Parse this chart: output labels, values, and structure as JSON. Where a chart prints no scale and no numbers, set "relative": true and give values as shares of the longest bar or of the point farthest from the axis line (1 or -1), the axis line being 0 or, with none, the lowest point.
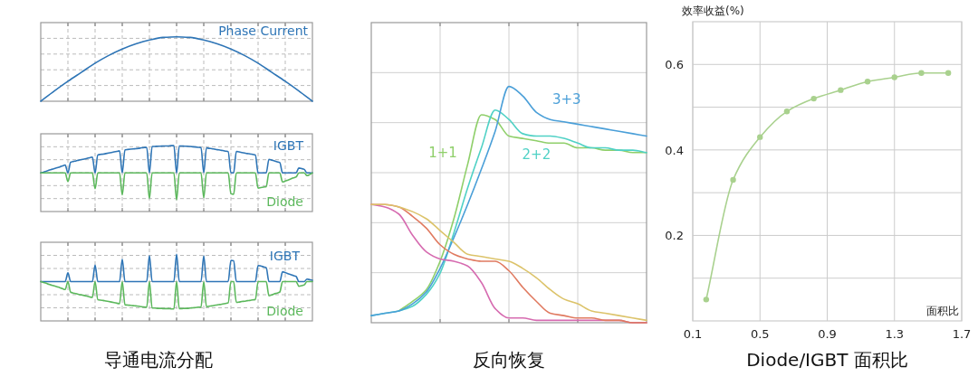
{
  "chart_data": [
    {
      "type": "line",
      "relative": true,
      "grid": true,
      "categories": [
        null,
        null,
        null,
        null,
        null,
        null,
        null,
        null,
        null,
        null,
        null,
        null,
        null,
        null,
        null,
        null,
        null,
        null,
        null,
        null,
        null
      ],
      "series": [
        {
          "name": "Phase Current",
          "color": "#2e75b6",
          "values": [
            0,
            0.16,
            0.31,
            0.45,
            0.59,
            0.71,
            0.81,
            0.89,
            0.95,
            0.99,
            1,
            0.99,
            0.95,
            0.89,
            0.81,
            0.71,
            0.59,
            0.45,
            0.31,
            0.16,
            0
          ]
        }
      ]
    },
    {
      "type": "line",
      "relative": true,
      "grid": true,
      "categories": [
        null,
        null,
        null,
        null,
        null,
        null,
        null,
        null,
        null,
        null,
        null,
        null,
        null,
        null,
        null,
        null,
        null,
        null,
        null,
        null,
        null,
        null,
        null,
        null,
        null,
        null,
        null,
        null,
        null,
        null,
        null,
        null,
        null,
        null,
        null,
        null,
        null,
        null,
        null,
        null,
        null,
        null,
        null,
        null,
        null,
        null,
        null,
        null,
        null,
        null,
        null,
        null,
        null,
        null,
        null,
        null,
        null,
        null,
        null,
        null,
        null,
        null,
        null,
        null,
        null,
        null,
        null,
        null,
        null,
        null,
        null,
        null,
        null,
        null,
        null,
        null,
        null,
        null,
        null,
        null,
        null,
        null,
        null,
        null,
        null,
        null,
        null,
        null,
        null,
        null,
        null,
        null,
        null,
        null,
        null,
        null,
        null,
        null,
        null,
        null,
        null
      ],
      "series": [
        {
          "name": "IGBT",
          "color": "#2e75b6",
          "values": [
            0,
            0.03,
            0.06,
            0.1,
            0.13,
            0.16,
            0.19,
            0.22,
            0.26,
            0.29,
            0,
            0.39,
            0.42,
            0.44,
            0.47,
            0.49,
            0.51,
            0.53,
            0.56,
            0.58,
            0,
            0.66,
            0.68,
            0.69,
            0.71,
            0.73,
            0.75,
            0.77,
            0.79,
            0.81,
            0,
            0.85,
            0.86,
            0.87,
            0.88,
            0.89,
            0.9,
            0.92,
            0.93,
            0.94,
            0,
            0.97,
            0.97,
            0.98,
            0.98,
            0.99,
            0.99,
            0.99,
            1,
            1,
            0,
            0.99,
            0.99,
            0.98,
            0.98,
            0.97,
            0.96,
            0.95,
            0.94,
            0.93,
            0,
            0.92,
            0.9,
            0.89,
            0.87,
            0.85,
            0.84,
            0.82,
            0.8,
            0.78,
            0,
            0,
            0.79,
            0.77,
            0.75,
            0.73,
            0.71,
            0.7,
            0.68,
            0.66,
            0,
            0,
            0,
            0,
            0.5,
            0.47,
            0.44,
            0.41,
            0.38,
            0,
            0,
            0,
            0,
            0,
            0,
            0.18,
            0.16,
            0.13,
            0,
            0,
            0
          ]
        },
        {
          "name": "Diode",
          "color": "#5cb85c",
          "values": [
            0,
            0,
            0,
            0,
            0,
            0,
            0,
            0,
            0,
            0,
            -0.32,
            0,
            0,
            0,
            0,
            0,
            0,
            0,
            0,
            0,
            -0.58,
            0,
            0,
            0,
            0,
            0,
            0,
            0,
            0,
            0,
            -0.8,
            0,
            0,
            0,
            0,
            0,
            0,
            0,
            0,
            0,
            -0.94,
            0,
            0,
            0,
            0,
            0,
            0,
            0,
            0,
            0,
            -0.98,
            0,
            0,
            0,
            0,
            0,
            0,
            0,
            0,
            0,
            -0.91,
            0,
            0,
            0,
            0,
            0,
            0,
            0,
            0,
            0,
            -0.76,
            -0.78,
            0,
            0,
            0,
            0,
            0,
            0,
            0,
            0,
            -0.56,
            -0.54,
            -0.52,
            -0.5,
            0,
            0,
            0,
            0,
            0,
            -0.33,
            -0.3,
            -0.26,
            -0.22,
            -0.18,
            -0.15,
            0,
            0,
            0,
            -0.1,
            -0.06,
            0
          ]
        }
      ]
    },
    {
      "type": "line",
      "relative": true,
      "grid": true,
      "annotations": [
        "导通电流分配"
      ],
      "categories": [
        null,
        null,
        null,
        null,
        null,
        null,
        null,
        null,
        null,
        null,
        null,
        null,
        null,
        null,
        null,
        null,
        null,
        null,
        null,
        null,
        null,
        null,
        null,
        null,
        null,
        null,
        null,
        null,
        null,
        null,
        null,
        null,
        null,
        null,
        null,
        null,
        null,
        null,
        null,
        null,
        null,
        null,
        null,
        null,
        null,
        null,
        null,
        null,
        null,
        null,
        null,
        null,
        null,
        null,
        null,
        null,
        null,
        null,
        null,
        null,
        null,
        null,
        null,
        null,
        null,
        null,
        null,
        null,
        null,
        null,
        null,
        null,
        null,
        null,
        null,
        null,
        null,
        null,
        null,
        null,
        null,
        null,
        null,
        null,
        null,
        null,
        null,
        null,
        null,
        null,
        null,
        null,
        null,
        null,
        null,
        null,
        null,
        null,
        null,
        null,
        null
      ],
      "series": [
        {
          "name": "IGBT",
          "color": "#2e75b6",
          "values": [
            0,
            0,
            0,
            0,
            0,
            0,
            0,
            0,
            0,
            0,
            0.32,
            0,
            0,
            0,
            0,
            0,
            0,
            0,
            0,
            0,
            0.6,
            0,
            0,
            0,
            0,
            0,
            0,
            0,
            0,
            0,
            0.82,
            0,
            0,
            0,
            0,
            0,
            0,
            0,
            0,
            0,
            0.95,
            0,
            0,
            0,
            0,
            0,
            0,
            0,
            0,
            0,
            1,
            0,
            0,
            0,
            0,
            0,
            0,
            0,
            0,
            0,
            0.94,
            0,
            0,
            0,
            0,
            0,
            0,
            0,
            0,
            0,
            0.78,
            0.76,
            0,
            0,
            0,
            0,
            0,
            0,
            0,
            0,
            0.59,
            0.57,
            0.54,
            0.51,
            0,
            0,
            0,
            0,
            0,
            0.36,
            0.33,
            0.29,
            0.26,
            0.22,
            0.19,
            0,
            0,
            0,
            0.09,
            0.07,
            0.05
          ]
        },
        {
          "name": "Diode",
          "color": "#5cb85c",
          "values": [
            0,
            -0.03,
            -0.06,
            -0.1,
            -0.13,
            -0.16,
            -0.19,
            -0.22,
            -0.26,
            -0.29,
            0,
            -0.39,
            -0.42,
            -0.44,
            -0.47,
            -0.49,
            -0.51,
            -0.53,
            -0.56,
            -0.58,
            0,
            -0.66,
            -0.68,
            -0.69,
            -0.71,
            -0.73,
            -0.75,
            -0.77,
            -0.79,
            -0.81,
            0,
            -0.85,
            -0.86,
            -0.87,
            -0.88,
            -0.89,
            -0.9,
            -0.92,
            -0.93,
            -0.94,
            0,
            -0.97,
            -0.97,
            -0.98,
            -0.98,
            -0.99,
            -0.99,
            -0.99,
            -1,
            -1,
            0,
            -0.99,
            -0.99,
            -0.98,
            -0.98,
            -0.97,
            -0.96,
            -0.95,
            -0.94,
            -0.93,
            0,
            -0.92,
            -0.9,
            -0.89,
            -0.87,
            -0.85,
            -0.84,
            -0.82,
            -0.8,
            -0.78,
            0,
            0,
            -0.76,
            -0.75,
            -0.73,
            -0.72,
            -0.7,
            -0.69,
            -0.67,
            -0.66,
            0,
            0,
            0,
            0,
            -0.52,
            -0.49,
            -0.45,
            -0.42,
            -0.38,
            0,
            0,
            0,
            0,
            0,
            0,
            -0.17,
            -0.15,
            -0.12,
            0,
            0,
            0
          ]
        }
      ]
    },
    {
      "type": "line",
      "relative": true,
      "grid": true,
      "annotations": [
        "反向恢复"
      ],
      "categories": [
        null,
        null,
        null,
        null,
        null,
        null,
        null,
        null,
        null,
        null,
        null,
        null,
        null,
        null,
        null,
        null,
        null,
        null,
        null,
        null,
        null
      ],
      "series": [
        {
          "name": "1+1",
          "color": "#8fcf6a",
          "values": [
            null,
            null,
            0.05,
            0.09,
            0.14,
            0.26,
            0.44,
            0.67,
            0.88,
            0.86,
            0.79,
            0.78,
            0.77,
            0.76,
            0.76,
            0.74,
            0.74,
            0.73,
            0.73,
            0.72,
            0.72
          ]
        },
        {
          "name": "2+2",
          "color": "#4fd1c5",
          "values": [
            0.03,
            0.04,
            0.05,
            0.07,
            0.12,
            0.21,
            0.38,
            0.57,
            0.74,
            0.9,
            0.86,
            0.8,
            0.79,
            0.79,
            0.78,
            0.76,
            0.74,
            0.74,
            0.73,
            0.73,
            0.72
          ]
        },
        {
          "name": "3+3",
          "color": "#4a9fd8",
          "values": [
            0.03,
            0.04,
            0.05,
            0.08,
            0.13,
            0.23,
            0.36,
            0.5,
            0.65,
            0.81,
            1,
            0.96,
            0.89,
            0.86,
            0.85,
            0.84,
            0.83,
            0.82,
            0.81,
            0.8,
            0.79
          ]
        },
        {
          "color": "#d66bb0",
          "values": [
            0.5,
            0.49,
            0.46,
            0.37,
            0.3,
            0.27,
            0.26,
            0.24,
            0.17,
            0.06,
            0.02,
            0.02,
            0.01,
            0.01,
            0.01,
            0.01,
            0.01,
            0.01,
            0.01,
            0,
            0
          ]
        },
        {
          "color": "#e07a60",
          "values": [
            0.5,
            0.5,
            0.49,
            0.45,
            0.4,
            0.33,
            0.29,
            0.27,
            0.26,
            0.26,
            0.22,
            0.15,
            0.09,
            0.04,
            0.03,
            0.02,
            0.02,
            0.01,
            0.01,
            0,
            0
          ]
        },
        {
          "color": "#dcc36a",
          "values": [
            0.5,
            0.5,
            0.49,
            0.47,
            0.44,
            0.39,
            0.34,
            0.29,
            0.28,
            0.27,
            0.26,
            0.23,
            0.19,
            0.14,
            0.1,
            0.08,
            0.05,
            0.04,
            0.03,
            0.02,
            0.01
          ]
        }
      ]
    },
    {
      "type": "line",
      "xlabel": "面积比",
      "ylabel": "效率收益(%)",
      "annotations": [
        "Diode/IGBT 面积比"
      ],
      "xlim": [
        0.1,
        1.7
      ],
      "xticks": [
        0.1,
        0.5,
        0.9,
        1.3,
        1.7
      ],
      "ylim": [
        0,
        0.7
      ],
      "yticks": [
        {
          "value": 0.1,
          "label": null
        },
        0.2,
        {
          "value": 0.3,
          "label": null
        },
        0.4,
        {
          "value": 0.5,
          "label": null
        },
        0.6
      ],
      "grid": true,
      "marker": "circle",
      "series": [
        {
          "color": "#a9d18e",
          "x": [
            0.18,
            0.34,
            0.5,
            0.66,
            0.82,
            0.98,
            1.14,
            1.3,
            1.46,
            1.62
          ],
          "values": [
            0.05,
            0.33,
            0.43,
            0.49,
            0.52,
            0.54,
            0.56,
            0.57,
            0.58,
            0.58
          ]
        }
      ]
    }
  ]
}
